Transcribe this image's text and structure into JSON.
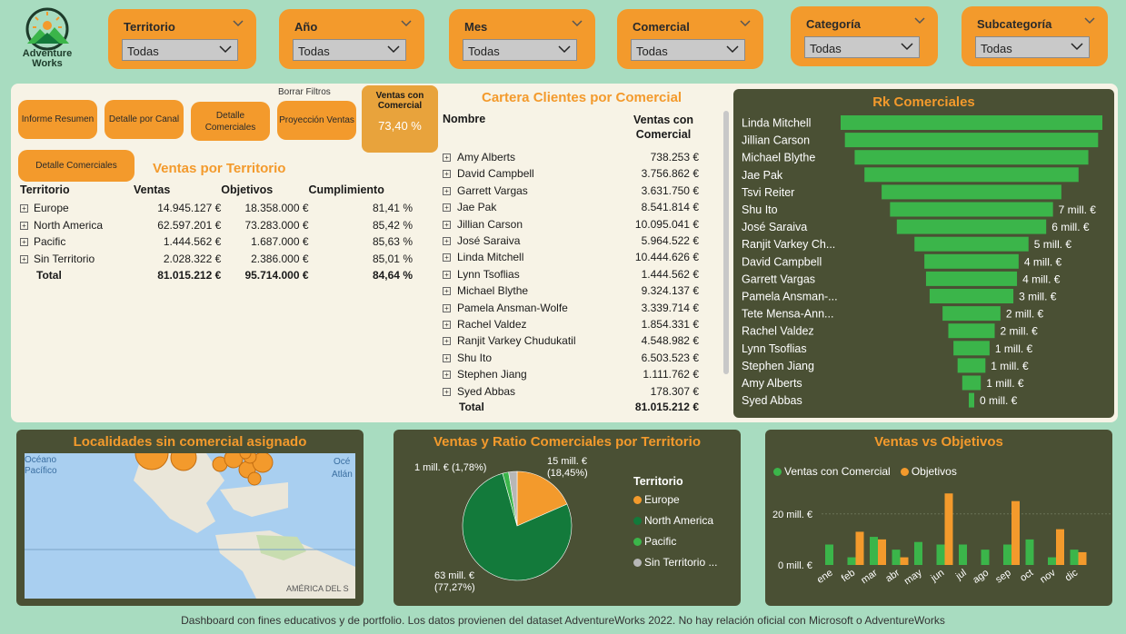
{
  "brand": {
    "name_line1": "Adventure",
    "name_line2": "Works"
  },
  "filters": [
    {
      "label": "Territorio",
      "value": "Todas"
    },
    {
      "label": "Año",
      "value": "Todas"
    },
    {
      "label": "Mes",
      "value": "Todas"
    },
    {
      "label": "Comercial",
      "value": "Todas"
    },
    {
      "label": "Categoría",
      "value": "Todas"
    },
    {
      "label": "Subcategoría",
      "value": "Todas"
    }
  ],
  "nav": {
    "informe_resumen": "Informe Resumen",
    "detalle_canal": "Detalle por Canal",
    "detalle_comerciales": "Detalle Comerciales",
    "proyeccion_ventas": "Proyección Ventas",
    "borrar_filtros": "Borrar Filtros",
    "detalle_comerciales_2": "Detalle Comerciales"
  },
  "kpi": {
    "label": "Ventas con Comercial",
    "value": "73,40 %"
  },
  "ventas_territorio": {
    "title": "Ventas por Territorio",
    "headers": [
      "Territorio",
      "Ventas",
      "Objetivos",
      "Cumplimiento"
    ],
    "rows": [
      {
        "name": "Europe",
        "ventas": "14.945.127 €",
        "objetivos": "18.358.000 €",
        "cumpl": "81,41 %"
      },
      {
        "name": "North America",
        "ventas": "62.597.201 €",
        "objetivos": "73.283.000 €",
        "cumpl": "85,42 %"
      },
      {
        "name": "Pacific",
        "ventas": "1.444.562 €",
        "objetivos": "1.687.000 €",
        "cumpl": "85,63 %"
      },
      {
        "name": "Sin Territorio",
        "ventas": "2.028.322 €",
        "objetivos": "2.386.000 €",
        "cumpl": "85,01 %"
      }
    ],
    "total": {
      "name": "Total",
      "ventas": "81.015.212 €",
      "objetivos": "95.714.000 €",
      "cumpl": "84,64 %"
    }
  },
  "cartera": {
    "title": "Cartera Clientes por Comercial",
    "headers": [
      "Nombre",
      "Ventas con Comercial"
    ],
    "rows": [
      {
        "name": "Amy Alberts",
        "value": "738.253 €"
      },
      {
        "name": "David Campbell",
        "value": "3.756.862 €"
      },
      {
        "name": "Garrett Vargas",
        "value": "3.631.750 €"
      },
      {
        "name": "Jae Pak",
        "value": "8.541.814 €"
      },
      {
        "name": "Jillian Carson",
        "value": "10.095.041 €"
      },
      {
        "name": "José Saraiva",
        "value": "5.964.522 €"
      },
      {
        "name": "Linda Mitchell",
        "value": "10.444.626 €"
      },
      {
        "name": "Lynn Tsoflias",
        "value": "1.444.562 €"
      },
      {
        "name": "Michael Blythe",
        "value": "9.324.137 €"
      },
      {
        "name": "Pamela Ansman-Wolfe",
        "value": "3.339.714 €"
      },
      {
        "name": "Rachel Valdez",
        "value": "1.854.331 €"
      },
      {
        "name": "Ranjit Varkey Chudukatil",
        "value": "4.548.982 €"
      },
      {
        "name": "Shu Ito",
        "value": "6.503.523 €"
      },
      {
        "name": "Stephen Jiang",
        "value": "1.111.762 €"
      },
      {
        "name": "Syed Abbas",
        "value": "178.307 €"
      }
    ],
    "total": {
      "name": "Total",
      "value": "81.015.212 €"
    }
  },
  "rk": {
    "title": "Rk Comerciales",
    "items": [
      {
        "name": "Linda Mitchell",
        "value": 10.44,
        "label": ""
      },
      {
        "name": "Jillian Carson",
        "value": 10.1,
        "label": ""
      },
      {
        "name": "Michael Blythe",
        "value": 9.32,
        "label": ""
      },
      {
        "name": "Jae Pak",
        "value": 8.54,
        "label": ""
      },
      {
        "name": "Tsvi Reiter",
        "value": 7.17,
        "label": ""
      },
      {
        "name": "Shu Ito",
        "value": 6.5,
        "label": "7 mill. €"
      },
      {
        "name": "José Saraiva",
        "value": 5.96,
        "label": "6 mill. €"
      },
      {
        "name": "Ranjit Varkey Ch...",
        "value": 4.55,
        "label": "5 mill. €"
      },
      {
        "name": "David Campbell",
        "value": 3.76,
        "label": "4 mill. €"
      },
      {
        "name": "Garrett Vargas",
        "value": 3.63,
        "label": "4 mill. €"
      },
      {
        "name": "Pamela Ansman-...",
        "value": 3.34,
        "label": "3 mill. €"
      },
      {
        "name": "Tete Mensa-Ann...",
        "value": 2.31,
        "label": "2 mill. €"
      },
      {
        "name": "Rachel Valdez",
        "value": 1.85,
        "label": "2 mill. €"
      },
      {
        "name": "Lynn Tsoflias",
        "value": 1.44,
        "label": "1 mill. €"
      },
      {
        "name": "Stephen Jiang",
        "value": 1.11,
        "label": "1 mill. €"
      },
      {
        "name": "Amy Alberts",
        "value": 0.74,
        "label": "1 mill. €"
      },
      {
        "name": "Syed Abbas",
        "value": 0.18,
        "label": "0 mill. €"
      }
    ]
  },
  "map": {
    "title": "Localidades sin comercial asignado",
    "labels": {
      "ocean1a": "Océano",
      "ocean1b": "Pacífico",
      "ocean2a": "Océ",
      "ocean2b": "Atlán",
      "region": "AMÉRICA DEL S"
    }
  },
  "pie": {
    "title": "Ventas y Ratio Comerciales por Territorio",
    "legend_title": "Territorio",
    "labels": {
      "europe": "15 mill. €",
      "europe_pct": "(18,45%)",
      "pacific": "1 mill. € (1,78%)",
      "na": "63 mill. €",
      "na_pct": "(77,27%)"
    }
  },
  "bar_chart": {
    "title": "Ventas vs Objetivos",
    "legend": [
      "Ventas con Comercial",
      "Objetivos"
    ],
    "y_ticks": [
      "20 mill. €",
      "0 mill. €"
    ]
  },
  "footer": "Dashboard con fines educativos y de portfolio. Los datos provienen del dataset AdventureWorks 2022. No hay relación oficial con Microsoft o AdventureWorks",
  "colors": {
    "orange": "#f39a2c",
    "green_bar": "#3bb54a",
    "dark_green": "#137a3b",
    "gray": "#b7b7b7",
    "panel": "#4a5034"
  },
  "chart_data": [
    {
      "type": "pie",
      "title": "Ventas y Ratio Comerciales por Territorio",
      "categories": [
        "Europe",
        "North America",
        "Pacific",
        "Sin Territorio ..."
      ],
      "values": [
        18.45,
        77.27,
        1.78,
        2.5
      ]
    },
    {
      "type": "bar",
      "title": "Ventas vs Objetivos",
      "categories": [
        "ene",
        "feb",
        "mar",
        "abr",
        "may",
        "jun",
        "jul",
        "ago",
        "sep",
        "oct",
        "nov",
        "dic"
      ],
      "series": [
        {
          "name": "Ventas con Comercial",
          "values": [
            8,
            3,
            11,
            6,
            9,
            8,
            8,
            6,
            8,
            10,
            3,
            6
          ]
        },
        {
          "name": "Objetivos",
          "values": [
            0,
            13,
            10,
            3,
            0,
            28,
            0,
            0,
            25,
            0,
            14,
            5
          ]
        }
      ],
      "y_ticks": [
        "20 mill. €",
        "0 mill. €"
      ],
      "ylim": [
        0,
        32
      ]
    }
  ]
}
